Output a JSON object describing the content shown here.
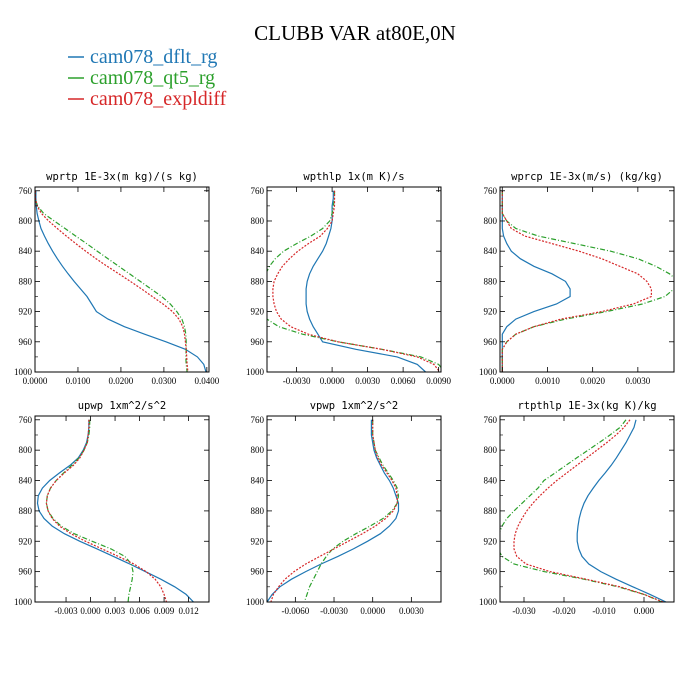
{
  "chart_data": {
    "type": "line",
    "title": "CLUBB VAR at80E,0N",
    "legend": [
      {
        "name": "cam078_dflt_rg",
        "color": "#1f77b4",
        "dash": "solid"
      },
      {
        "name": "cam078_qt5_rg",
        "color": "#2ca02c",
        "dash": "dashdot"
      },
      {
        "name": "cam078_expldiff",
        "color": "#d62728",
        "dash": "dot"
      }
    ],
    "y_levels": [
      760,
      770,
      780,
      790,
      800,
      810,
      820,
      830,
      840,
      850,
      860,
      870,
      880,
      890,
      900,
      910,
      920,
      930,
      940,
      950,
      960,
      970,
      980,
      990,
      1000
    ],
    "y_ticks": [
      "760",
      "800",
      "840",
      "880",
      "920",
      "960",
      "1000"
    ],
    "y_tick_values": [
      760,
      800,
      840,
      880,
      920,
      960,
      1000
    ],
    "ylim": [
      755,
      1000
    ],
    "panels": [
      {
        "title": "wprtp  1E-3x(m kg)/(s kg)",
        "xlim": [
          0.0,
          0.0405
        ],
        "x_ticks": [
          "0.0000",
          "0.0100",
          "0.0200",
          "0.0300",
          "0.0400"
        ],
        "x_tick_values": [
          0.0,
          0.01,
          0.02,
          0.03,
          0.04
        ],
        "series": [
          {
            "name": "cam078_dflt_rg",
            "values": [
              0.0002,
              0.0002,
              0.0003,
              0.0005,
              0.0009,
              0.0014,
              0.0022,
              0.0031,
              0.0041,
              0.0052,
              0.0064,
              0.0077,
              0.0091,
              0.0106,
              0.0121,
              0.0132,
              0.0143,
              0.017,
              0.0208,
              0.0255,
              0.0305,
              0.035,
              0.0378,
              0.0393,
              0.0398
            ]
          },
          {
            "name": "cam078_qt5_rg",
            "values": [
              0.0,
              0.0,
              0.0006,
              0.002,
              0.0045,
              0.007,
              0.0095,
              0.012,
              0.0145,
              0.017,
              0.0195,
              0.022,
              0.0245,
              0.027,
              0.0295,
              0.0315,
              0.033,
              0.0342,
              0.0348,
              0.0351,
              0.0352,
              0.0352,
              0.0351,
              0.0352,
              0.0354
            ]
          },
          {
            "name": "cam078_expldiff",
            "values": [
              0.0001,
              0.0001,
              0.0005,
              0.0015,
              0.0032,
              0.0052,
              0.0073,
              0.0095,
              0.0118,
              0.0142,
              0.0168,
              0.0195,
              0.0222,
              0.0248,
              0.0273,
              0.0298,
              0.032,
              0.0335,
              0.0344,
              0.0348,
              0.035,
              0.0352,
              0.0353,
              0.0354,
              0.0356
            ]
          }
        ]
      },
      {
        "title": "wpthlp  1x(m K)/s",
        "xlim": [
          -0.0055,
          0.0092
        ],
        "x_ticks": [
          "-0.0030",
          "0.0000",
          "0.0030",
          "0.0060",
          "0.0090"
        ],
        "x_tick_values": [
          -0.003,
          0.0,
          0.003,
          0.006,
          0.009
        ],
        "series": [
          {
            "name": "cam078_dflt_rg",
            "values": [
              0.0001,
              0.0001,
              0.0,
              0.0,
              0.0,
              -0.0001,
              -0.0003,
              -0.0005,
              -0.0008,
              -0.0012,
              -0.0016,
              -0.0019,
              -0.0021,
              -0.0022,
              -0.0022,
              -0.0022,
              -0.0021,
              -0.0019,
              -0.0016,
              -0.0012,
              -0.0008,
              0.002,
              0.0055,
              0.0072,
              0.0079
            ]
          },
          {
            "name": "cam078_qt5_rg",
            "values": [
              0.0002,
              0.0002,
              0.0001,
              0.0,
              -0.0002,
              -0.0008,
              -0.0018,
              -0.003,
              -0.0041,
              -0.0048,
              -0.0053,
              -0.0056,
              -0.0058,
              -0.0059,
              -0.006,
              -0.006,
              -0.0059,
              -0.0055,
              -0.0045,
              -0.0025,
              0.0005,
              0.0042,
              0.0075,
              0.009,
              0.0095
            ]
          },
          {
            "name": "cam078_expldiff",
            "values": [
              0.0002,
              0.0002,
              0.0002,
              0.0001,
              0.0,
              -0.0004,
              -0.001,
              -0.002,
              -0.0029,
              -0.0036,
              -0.0042,
              -0.0046,
              -0.0049,
              -0.005,
              -0.005,
              -0.0049,
              -0.0047,
              -0.0043,
              -0.0035,
              -0.002,
              0.0005,
              0.0042,
              0.0072,
              0.0086,
              0.0091
            ]
          }
        ]
      },
      {
        "title": "wprcp  1E-3x(m/s) (kg/kg)",
        "xlim": [
          -5e-05,
          0.0038
        ],
        "x_ticks": [
          "0.0000",
          "0.0010",
          "0.0020",
          "0.0030"
        ],
        "x_tick_values": [
          0.0,
          0.001,
          0.002,
          0.003
        ],
        "series": [
          {
            "name": "cam078_dflt_rg",
            "values": [
              0.0,
              0.0,
              0.0,
              0.0,
              0.0,
              0.0,
              3e-05,
              0.0001,
              0.0002,
              0.0004,
              0.0007,
              0.0011,
              0.0014,
              0.0015,
              0.0015,
              0.0012,
              0.0007,
              0.0003,
              0.0001,
              0.0,
              0.0,
              0.0,
              0.0,
              0.0,
              0.0
            ]
          },
          {
            "name": "cam078_qt5_rg",
            "values": [
              0.0,
              0.0,
              0.0,
              0.0,
              0.0001,
              0.0003,
              0.0008,
              0.0016,
              0.0024,
              0.003,
              0.0034,
              0.0037,
              0.0039,
              0.0038,
              0.0036,
              0.0031,
              0.0023,
              0.0014,
              0.0007,
              0.0003,
              0.0001,
              0.0,
              0.0,
              0.0,
              0.0
            ]
          },
          {
            "name": "cam078_expldiff",
            "values": [
              0.0,
              0.0,
              0.0,
              0.0,
              0.0001,
              0.0002,
              0.0005,
              0.0011,
              0.0017,
              0.0022,
              0.0026,
              0.003,
              0.0032,
              0.0033,
              0.0033,
              0.0029,
              0.0022,
              0.0013,
              0.0007,
              0.0003,
              0.0001,
              0.0,
              0.0,
              0.0,
              0.0
            ]
          }
        ]
      },
      {
        "title": "upwp  1xm^2/s^2",
        "xlim": [
          -0.0068,
          0.0145
        ],
        "x_ticks": [
          "-0.003",
          "0.000",
          "0.003",
          "0.006",
          "0.009",
          "0.012"
        ],
        "x_tick_values": [
          -0.003,
          0.0,
          0.003,
          0.006,
          0.009,
          0.012
        ],
        "series": [
          {
            "name": "cam078_dflt_rg",
            "values": [
              -0.0002,
              -0.0002,
              -0.0003,
              -0.0005,
              -0.0009,
              -0.0015,
              -0.0025,
              -0.0038,
              -0.005,
              -0.0059,
              -0.0064,
              -0.0065,
              -0.0063,
              -0.0057,
              -0.0047,
              -0.0032,
              -0.0013,
              0.0008,
              0.0028,
              0.0048,
              0.0067,
              0.0086,
              0.0103,
              0.0117,
              0.0126
            ]
          },
          {
            "name": "cam078_qt5_rg",
            "values": [
              -0.0001,
              -0.0001,
              -0.0002,
              -0.0004,
              -0.0008,
              -0.0014,
              -0.0023,
              -0.0033,
              -0.0042,
              -0.0049,
              -0.0053,
              -0.0054,
              -0.0052,
              -0.0046,
              -0.0036,
              -0.002,
              0.0002,
              0.0025,
              0.0042,
              0.005,
              0.0052,
              0.0051,
              0.0049,
              0.0047,
              0.0046
            ]
          },
          {
            "name": "cam078_expldiff",
            "values": [
              -0.0002,
              -0.0002,
              -0.0003,
              -0.0004,
              -0.0008,
              -0.0013,
              -0.0021,
              -0.0032,
              -0.0042,
              -0.0049,
              -0.0053,
              -0.0054,
              -0.0052,
              -0.0047,
              -0.0038,
              -0.0024,
              -0.0006,
              0.0014,
              0.0034,
              0.0053,
              0.0068,
              0.0079,
              0.0086,
              0.009,
              0.0093
            ]
          }
        ]
      },
      {
        "title": "vpwp  1xm^2/s^2",
        "xlim": [
          -0.0082,
          0.0053
        ],
        "x_ticks": [
          "-0.0060",
          "-0.0030",
          "0.0000",
          "0.0030"
        ],
        "x_tick_values": [
          -0.006,
          -0.003,
          0.0,
          0.003
        ],
        "series": [
          {
            "name": "cam078_dflt_rg",
            "values": [
              -0.0001,
              -0.0001,
              -0.0001,
              0.0,
              0.0001,
              0.0003,
              0.0006,
              0.0009,
              0.0013,
              0.0016,
              0.0018,
              0.002,
              0.002,
              0.0018,
              0.0013,
              0.0006,
              -0.0004,
              -0.0015,
              -0.0027,
              -0.004,
              -0.0052,
              -0.0063,
              -0.0072,
              -0.0078,
              -0.0082
            ]
          },
          {
            "name": "cam078_qt5_rg",
            "values": [
              0.0,
              0.0,
              0.0,
              0.0001,
              0.0002,
              0.0005,
              0.0008,
              0.0012,
              0.0016,
              0.0019,
              0.002,
              0.0019,
              0.0015,
              0.0008,
              -0.0002,
              -0.0013,
              -0.0023,
              -0.0031,
              -0.0036,
              -0.004,
              -0.0043,
              -0.0046,
              -0.0049,
              -0.0051,
              -0.0053
            ]
          },
          {
            "name": "cam078_expldiff",
            "values": [
              0.0,
              0.0,
              0.0,
              0.0001,
              0.0002,
              0.0004,
              0.0007,
              0.0011,
              0.0015,
              0.0018,
              0.0019,
              0.0019,
              0.0016,
              0.001,
              0.0002,
              -0.0008,
              -0.0019,
              -0.003,
              -0.0041,
              -0.0052,
              -0.0061,
              -0.0068,
              -0.0073,
              -0.0077,
              -0.0079
            ]
          }
        ]
      },
      {
        "title": "rtpthlp  1E-3x(kg K)/kg",
        "xlim": [
          -0.036,
          0.0075
        ],
        "x_ticks": [
          "-0.030",
          "-0.020",
          "-0.010",
          "0.000"
        ],
        "x_tick_values": [
          -0.03,
          -0.02,
          -0.01,
          0.0
        ],
        "series": [
          {
            "name": "cam078_dflt_rg",
            "values": [
              -0.002,
              -0.0025,
              -0.0035,
              -0.0045,
              -0.0057,
              -0.0069,
              -0.0082,
              -0.0097,
              -0.0113,
              -0.0127,
              -0.014,
              -0.015,
              -0.0157,
              -0.0162,
              -0.0165,
              -0.0167,
              -0.0167,
              -0.0163,
              -0.0155,
              -0.0138,
              -0.0108,
              -0.007,
              -0.0028,
              0.0015,
              0.0055
            ]
          },
          {
            "name": "cam078_qt5_rg",
            "values": [
              -0.0045,
              -0.006,
              -0.0085,
              -0.0112,
              -0.014,
              -0.0168,
              -0.0195,
              -0.0222,
              -0.025,
              -0.0265,
              -0.0285,
              -0.0305,
              -0.0325,
              -0.0343,
              -0.0355,
              -0.0362,
              -0.0365,
              -0.0365,
              -0.0355,
              -0.0325,
              -0.025,
              -0.015,
              -0.0065,
              0.0,
              0.0045
            ]
          },
          {
            "name": "cam078_expldiff",
            "values": [
              -0.0035,
              -0.005,
              -0.007,
              -0.0093,
              -0.0118,
              -0.0143,
              -0.0168,
              -0.0193,
              -0.0218,
              -0.024,
              -0.026,
              -0.0278,
              -0.0293,
              -0.0305,
              -0.0315,
              -0.0322,
              -0.0325,
              -0.0325,
              -0.0318,
              -0.0295,
              -0.0235,
              -0.0145,
              -0.006,
              0.0,
              0.0048
            ]
          }
        ]
      }
    ]
  }
}
